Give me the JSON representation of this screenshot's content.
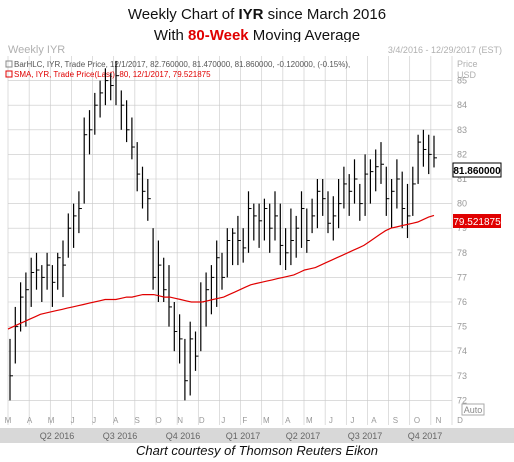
{
  "title": {
    "line1_prefix": "Weekly Chart of ",
    "line1_ticker": "IYR",
    "line1_suffix": " since March 2016",
    "line2_prefix": "With ",
    "line2_highlight": "80-Week",
    "line2_suffix": " Moving Average"
  },
  "header": {
    "left": "Weekly IYR",
    "right": "3/4/2016 - 12/29/2017 (EST)",
    "axis_label_1": "Price",
    "axis_label_2": "USD"
  },
  "legend": {
    "bar": "BarHLC, IYR, Trade Price, 12/1/2017, 82.760000, 81.470000, 81.860000, -0.120000, (-0.15%),",
    "sma": "SMA, IYR, Trade Price(Last), 80, 12/1/2017, 79.521875"
  },
  "price_box": "81.860000",
  "sma_box": "79.521875",
  "auto_label": "Auto",
  "caption": "Chart courtesy of Thomson Reuters Eikon",
  "colors": {
    "bars": "#000000",
    "sma": "#e00000",
    "grid": "#c8c8c8",
    "axis_strip": "#d8d8d8"
  },
  "chart_data": {
    "type": "bar_hlc_with_line",
    "ylim": [
      71,
      86
    ],
    "yticks": [
      72,
      73,
      74,
      75,
      76,
      77,
      78,
      79,
      80,
      81,
      82,
      83,
      84,
      85
    ],
    "month_labels": [
      "M",
      "A",
      "M",
      "J",
      "J",
      "A",
      "S",
      "O",
      "N",
      "D",
      "J",
      "F",
      "M",
      "A",
      "M",
      "J",
      "J",
      "A",
      "S",
      "O",
      "N",
      "D"
    ],
    "quarter_labels": [
      "Q2 2016",
      "Q3 2016",
      "Q4 2016",
      "Q1 2017",
      "Q2 2017",
      "Q3 2017",
      "Q4 2017"
    ],
    "bars_hlc": [
      [
        74.5,
        72.0,
        73.0
      ],
      [
        75.8,
        73.5,
        75.0
      ],
      [
        76.8,
        74.8,
        76.2
      ],
      [
        77.2,
        75.0,
        76.5
      ],
      [
        77.8,
        75.8,
        77.2
      ],
      [
        78.0,
        76.5,
        77.3
      ],
      [
        77.5,
        76.0,
        77.0
      ],
      [
        78.0,
        76.5,
        77.5
      ],
      [
        77.5,
        75.8,
        76.8
      ],
      [
        78.0,
        76.5,
        77.8
      ],
      [
        78.5,
        76.2,
        77.5
      ],
      [
        79.6,
        77.8,
        79.0
      ],
      [
        80.0,
        78.2,
        79.5
      ],
      [
        80.5,
        78.8,
        79.8
      ],
      [
        83.5,
        80.0,
        82.8
      ],
      [
        83.8,
        82.0,
        83.0
      ],
      [
        84.5,
        82.8,
        84.0
      ],
      [
        85.0,
        83.5,
        84.5
      ],
      [
        85.5,
        84.0,
        85.0
      ],
      [
        85.3,
        84.2,
        84.8
      ],
      [
        85.8,
        84.0,
        85.2
      ],
      [
        84.6,
        83.0,
        84.0
      ],
      [
        84.2,
        82.5,
        83.0
      ],
      [
        83.5,
        81.8,
        82.3
      ],
      [
        82.5,
        80.5,
        81.2
      ],
      [
        81.5,
        79.8,
        80.5
      ],
      [
        81.0,
        79.3,
        80.2
      ],
      [
        79.0,
        76.5,
        77.0
      ],
      [
        78.5,
        76.0,
        77.5
      ],
      [
        77.8,
        76.0,
        76.5
      ],
      [
        77.5,
        75.0,
        75.8
      ],
      [
        76.0,
        74.0,
        74.8
      ],
      [
        75.5,
        73.5,
        74.5
      ],
      [
        74.5,
        72.0,
        72.8
      ],
      [
        75.2,
        72.2,
        74.5
      ],
      [
        74.8,
        73.2,
        73.8
      ],
      [
        76.8,
        74.0,
        76.0
      ],
      [
        77.2,
        75.0,
        76.5
      ],
      [
        77.5,
        75.5,
        77.0
      ],
      [
        78.5,
        75.8,
        77.8
      ],
      [
        78.0,
        76.5,
        77.0
      ],
      [
        79.0,
        77.0,
        78.5
      ],
      [
        79.0,
        77.5,
        78.8
      ],
      [
        79.5,
        77.5,
        78.5
      ],
      [
        79.0,
        77.6,
        78.2
      ],
      [
        80.5,
        78.0,
        79.8
      ],
      [
        80.0,
        78.5,
        79.5
      ],
      [
        80.0,
        78.2,
        79.3
      ],
      [
        80.2,
        78.5,
        79.8
      ],
      [
        80.0,
        78.0,
        79.0
      ],
      [
        80.5,
        78.5,
        79.5
      ],
      [
        80.0,
        77.5,
        78.3
      ],
      [
        79.0,
        77.3,
        78.0
      ],
      [
        79.8,
        77.5,
        78.5
      ],
      [
        79.5,
        77.8,
        79.0
      ],
      [
        80.5,
        78.2,
        79.8
      ],
      [
        79.8,
        78.0,
        78.5
      ],
      [
        80.2,
        78.8,
        79.5
      ],
      [
        81.0,
        79.0,
        80.5
      ],
      [
        81.0,
        79.5,
        80.2
      ],
      [
        80.5,
        78.8,
        79.2
      ],
      [
        80.3,
        78.5,
        79.5
      ],
      [
        81.0,
        79.0,
        80.0
      ],
      [
        81.5,
        79.8,
        80.8
      ],
      [
        81.2,
        79.5,
        80.5
      ],
      [
        81.8,
        80.0,
        81.0
      ],
      [
        80.8,
        79.3,
        80.0
      ],
      [
        82.0,
        79.5,
        81.2
      ],
      [
        81.8,
        80.0,
        81.3
      ],
      [
        82.2,
        80.5,
        81.5
      ],
      [
        82.5,
        80.8,
        81.6
      ],
      [
        81.5,
        79.5,
        80.2
      ],
      [
        81.0,
        79.0,
        80.5
      ],
      [
        81.8,
        79.8,
        81.0
      ],
      [
        81.3,
        79.0,
        79.8
      ],
      [
        80.8,
        78.6,
        79.5
      ],
      [
        81.5,
        79.5,
        80.8
      ],
      [
        82.8,
        80.8,
        82.5
      ],
      [
        83.0,
        81.5,
        82.2
      ],
      [
        82.8,
        81.2,
        82.0
      ],
      [
        82.76,
        81.47,
        81.86
      ]
    ],
    "sma_series": {
      "name": "SMA(80)",
      "values": [
        74.9,
        75.0,
        75.1,
        75.2,
        75.3,
        75.4,
        75.5,
        75.55,
        75.6,
        75.65,
        75.7,
        75.75,
        75.8,
        75.85,
        75.9,
        75.95,
        76.0,
        76.05,
        76.1,
        76.1,
        76.1,
        76.15,
        76.2,
        76.2,
        76.25,
        76.3,
        76.3,
        76.3,
        76.25,
        76.2,
        76.2,
        76.15,
        76.1,
        76.05,
        76.0,
        76.0,
        76.0,
        76.05,
        76.1,
        76.15,
        76.2,
        76.3,
        76.4,
        76.5,
        76.6,
        76.7,
        76.75,
        76.8,
        76.85,
        76.9,
        76.95,
        77.0,
        77.05,
        77.1,
        77.2,
        77.3,
        77.35,
        77.4,
        77.5,
        77.6,
        77.7,
        77.8,
        77.9,
        78.0,
        78.1,
        78.2,
        78.3,
        78.45,
        78.6,
        78.75,
        78.9,
        79.0,
        79.05,
        79.1,
        79.15,
        79.2,
        79.25,
        79.35,
        79.45,
        79.52
      ]
    }
  }
}
